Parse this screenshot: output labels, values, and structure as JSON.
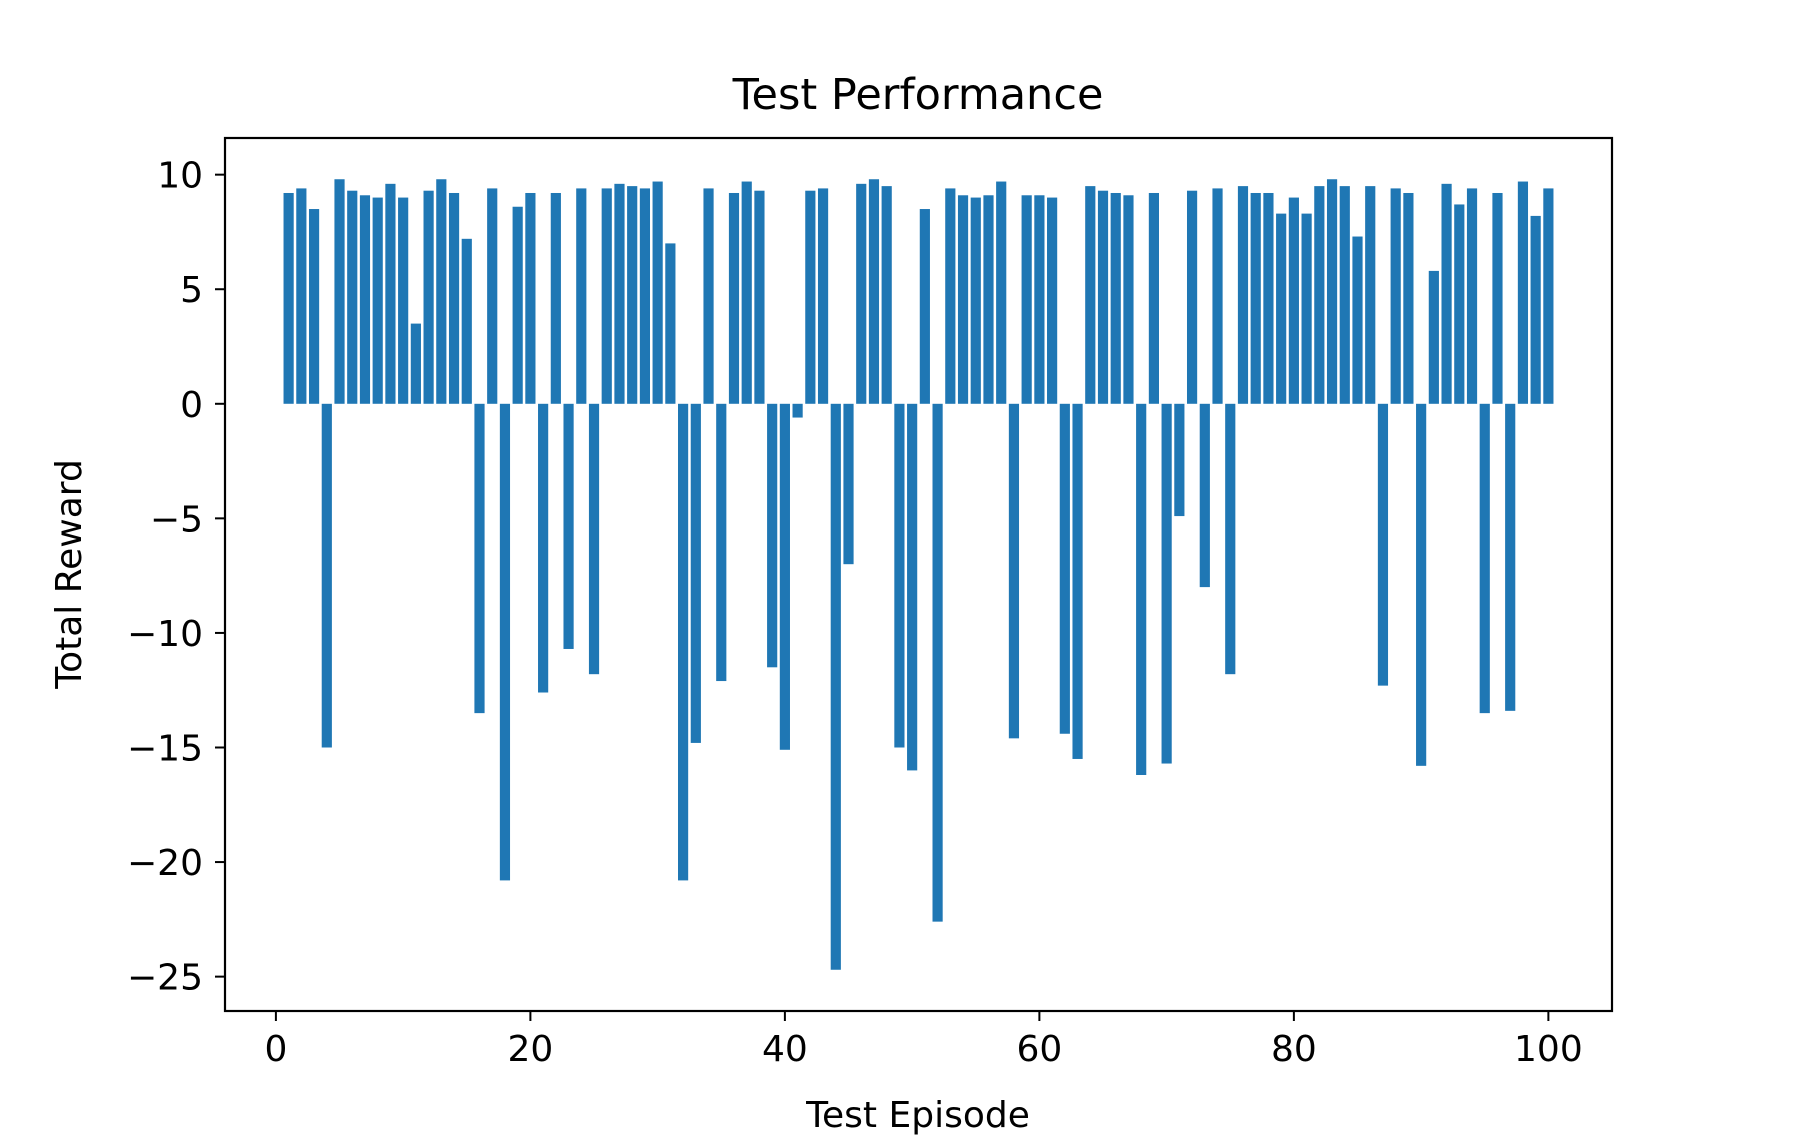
{
  "chart_data": {
    "type": "bar",
    "title": "Test Performance",
    "xlabel": "Test Episode",
    "ylabel": "Total Reward",
    "xlim": [
      -4,
      105
    ],
    "ylim": [
      -26.5,
      11.6
    ],
    "xticks": [
      0,
      20,
      40,
      60,
      80,
      100
    ],
    "yticks": [
      10,
      5,
      0,
      -5,
      -10,
      -15,
      -20,
      -25
    ],
    "xtick_labels": [
      "0",
      "20",
      "40",
      "60",
      "80",
      "100"
    ],
    "ytick_labels": [
      "10",
      "5",
      "0",
      "−5",
      "−10",
      "−15",
      "−20",
      "−25"
    ],
    "grid": false,
    "bar_color": "#1f77b4",
    "x": [
      1,
      2,
      3,
      4,
      5,
      6,
      7,
      8,
      9,
      10,
      11,
      12,
      13,
      14,
      15,
      16,
      17,
      18,
      19,
      20,
      21,
      22,
      23,
      24,
      25,
      26,
      27,
      28,
      29,
      30,
      31,
      32,
      33,
      34,
      35,
      36,
      37,
      38,
      39,
      40,
      41,
      42,
      43,
      44,
      45,
      46,
      47,
      48,
      49,
      50,
      51,
      52,
      53,
      54,
      55,
      56,
      57,
      58,
      59,
      60,
      61,
      62,
      63,
      64,
      65,
      66,
      67,
      68,
      69,
      70,
      71,
      72,
      73,
      74,
      75,
      76,
      77,
      78,
      79,
      80,
      81,
      82,
      83,
      84,
      85,
      86,
      87,
      88,
      89,
      90,
      91,
      92,
      93,
      94,
      95,
      96,
      97,
      98,
      99,
      100
    ],
    "values": [
      9.2,
      9.4,
      8.5,
      -15.0,
      9.8,
      9.3,
      9.1,
      9.0,
      9.6,
      9.0,
      3.5,
      9.3,
      9.8,
      9.2,
      7.2,
      -13.5,
      9.4,
      -20.8,
      8.6,
      9.2,
      -12.6,
      9.2,
      -10.7,
      9.4,
      -11.8,
      9.4,
      9.6,
      9.5,
      9.4,
      9.7,
      7.0,
      -20.8,
      -14.8,
      9.4,
      -12.1,
      9.2,
      9.7,
      9.3,
      -11.5,
      -15.1,
      -0.6,
      9.3,
      9.4,
      -24.7,
      -7.0,
      9.6,
      9.8,
      9.5,
      -15.0,
      -16.0,
      8.5,
      -22.6,
      9.4,
      9.1,
      9.0,
      9.1,
      9.7,
      -14.6,
      9.1,
      9.1,
      9.0,
      -14.4,
      -15.5,
      9.5,
      9.3,
      9.2,
      9.1,
      -16.2,
      9.2,
      -15.7,
      -4.9,
      9.3,
      -8.0,
      9.4,
      -11.8,
      9.5,
      9.2,
      9.2,
      8.3,
      9.0,
      8.3,
      9.5,
      9.8,
      9.5,
      7.3,
      9.5,
      -12.3,
      9.4,
      9.2,
      -15.8,
      5.8,
      9.6,
      8.7,
      9.4,
      -13.5,
      9.2,
      -13.4,
      9.7,
      8.2,
      9.4
    ]
  }
}
